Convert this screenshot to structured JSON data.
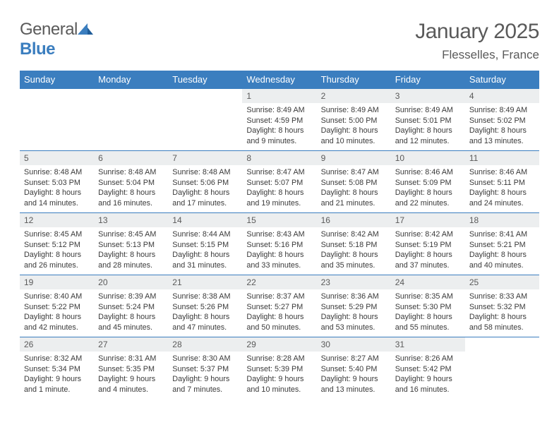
{
  "brand": {
    "name_a": "General",
    "name_b": "Blue"
  },
  "header": {
    "month_title": "January 2025",
    "location": "Flesselles, France"
  },
  "style": {
    "header_bg": "#3b7ebf",
    "header_fg": "#ffffff",
    "daynum_bg": "#eceeef",
    "text_color": "#5a5a5a",
    "body_color": "#3a3a3a",
    "row_border": "#3b7ebf",
    "page_bg": "#ffffff",
    "th_fontsize": 13,
    "daynum_fontsize": 12,
    "data_fontsize": 10.8,
    "title_fontsize": 30,
    "location_fontsize": 17
  },
  "weekdays": [
    "Sunday",
    "Monday",
    "Tuesday",
    "Wednesday",
    "Thursday",
    "Friday",
    "Saturday"
  ],
  "weeks": [
    [
      null,
      null,
      null,
      {
        "n": "1",
        "sr": "Sunrise: 8:49 AM",
        "ss": "Sunset: 4:59 PM",
        "dl1": "Daylight: 8 hours",
        "dl2": "and 9 minutes."
      },
      {
        "n": "2",
        "sr": "Sunrise: 8:49 AM",
        "ss": "Sunset: 5:00 PM",
        "dl1": "Daylight: 8 hours",
        "dl2": "and 10 minutes."
      },
      {
        "n": "3",
        "sr": "Sunrise: 8:49 AM",
        "ss": "Sunset: 5:01 PM",
        "dl1": "Daylight: 8 hours",
        "dl2": "and 12 minutes."
      },
      {
        "n": "4",
        "sr": "Sunrise: 8:49 AM",
        "ss": "Sunset: 5:02 PM",
        "dl1": "Daylight: 8 hours",
        "dl2": "and 13 minutes."
      }
    ],
    [
      {
        "n": "5",
        "sr": "Sunrise: 8:48 AM",
        "ss": "Sunset: 5:03 PM",
        "dl1": "Daylight: 8 hours",
        "dl2": "and 14 minutes."
      },
      {
        "n": "6",
        "sr": "Sunrise: 8:48 AM",
        "ss": "Sunset: 5:04 PM",
        "dl1": "Daylight: 8 hours",
        "dl2": "and 16 minutes."
      },
      {
        "n": "7",
        "sr": "Sunrise: 8:48 AM",
        "ss": "Sunset: 5:06 PM",
        "dl1": "Daylight: 8 hours",
        "dl2": "and 17 minutes."
      },
      {
        "n": "8",
        "sr": "Sunrise: 8:47 AM",
        "ss": "Sunset: 5:07 PM",
        "dl1": "Daylight: 8 hours",
        "dl2": "and 19 minutes."
      },
      {
        "n": "9",
        "sr": "Sunrise: 8:47 AM",
        "ss": "Sunset: 5:08 PM",
        "dl1": "Daylight: 8 hours",
        "dl2": "and 21 minutes."
      },
      {
        "n": "10",
        "sr": "Sunrise: 8:46 AM",
        "ss": "Sunset: 5:09 PM",
        "dl1": "Daylight: 8 hours",
        "dl2": "and 22 minutes."
      },
      {
        "n": "11",
        "sr": "Sunrise: 8:46 AM",
        "ss": "Sunset: 5:11 PM",
        "dl1": "Daylight: 8 hours",
        "dl2": "and 24 minutes."
      }
    ],
    [
      {
        "n": "12",
        "sr": "Sunrise: 8:45 AM",
        "ss": "Sunset: 5:12 PM",
        "dl1": "Daylight: 8 hours",
        "dl2": "and 26 minutes."
      },
      {
        "n": "13",
        "sr": "Sunrise: 8:45 AM",
        "ss": "Sunset: 5:13 PM",
        "dl1": "Daylight: 8 hours",
        "dl2": "and 28 minutes."
      },
      {
        "n": "14",
        "sr": "Sunrise: 8:44 AM",
        "ss": "Sunset: 5:15 PM",
        "dl1": "Daylight: 8 hours",
        "dl2": "and 31 minutes."
      },
      {
        "n": "15",
        "sr": "Sunrise: 8:43 AM",
        "ss": "Sunset: 5:16 PM",
        "dl1": "Daylight: 8 hours",
        "dl2": "and 33 minutes."
      },
      {
        "n": "16",
        "sr": "Sunrise: 8:42 AM",
        "ss": "Sunset: 5:18 PM",
        "dl1": "Daylight: 8 hours",
        "dl2": "and 35 minutes."
      },
      {
        "n": "17",
        "sr": "Sunrise: 8:42 AM",
        "ss": "Sunset: 5:19 PM",
        "dl1": "Daylight: 8 hours",
        "dl2": "and 37 minutes."
      },
      {
        "n": "18",
        "sr": "Sunrise: 8:41 AM",
        "ss": "Sunset: 5:21 PM",
        "dl1": "Daylight: 8 hours",
        "dl2": "and 40 minutes."
      }
    ],
    [
      {
        "n": "19",
        "sr": "Sunrise: 8:40 AM",
        "ss": "Sunset: 5:22 PM",
        "dl1": "Daylight: 8 hours",
        "dl2": "and 42 minutes."
      },
      {
        "n": "20",
        "sr": "Sunrise: 8:39 AM",
        "ss": "Sunset: 5:24 PM",
        "dl1": "Daylight: 8 hours",
        "dl2": "and 45 minutes."
      },
      {
        "n": "21",
        "sr": "Sunrise: 8:38 AM",
        "ss": "Sunset: 5:26 PM",
        "dl1": "Daylight: 8 hours",
        "dl2": "and 47 minutes."
      },
      {
        "n": "22",
        "sr": "Sunrise: 8:37 AM",
        "ss": "Sunset: 5:27 PM",
        "dl1": "Daylight: 8 hours",
        "dl2": "and 50 minutes."
      },
      {
        "n": "23",
        "sr": "Sunrise: 8:36 AM",
        "ss": "Sunset: 5:29 PM",
        "dl1": "Daylight: 8 hours",
        "dl2": "and 53 minutes."
      },
      {
        "n": "24",
        "sr": "Sunrise: 8:35 AM",
        "ss": "Sunset: 5:30 PM",
        "dl1": "Daylight: 8 hours",
        "dl2": "and 55 minutes."
      },
      {
        "n": "25",
        "sr": "Sunrise: 8:33 AM",
        "ss": "Sunset: 5:32 PM",
        "dl1": "Daylight: 8 hours",
        "dl2": "and 58 minutes."
      }
    ],
    [
      {
        "n": "26",
        "sr": "Sunrise: 8:32 AM",
        "ss": "Sunset: 5:34 PM",
        "dl1": "Daylight: 9 hours",
        "dl2": "and 1 minute."
      },
      {
        "n": "27",
        "sr": "Sunrise: 8:31 AM",
        "ss": "Sunset: 5:35 PM",
        "dl1": "Daylight: 9 hours",
        "dl2": "and 4 minutes."
      },
      {
        "n": "28",
        "sr": "Sunrise: 8:30 AM",
        "ss": "Sunset: 5:37 PM",
        "dl1": "Daylight: 9 hours",
        "dl2": "and 7 minutes."
      },
      {
        "n": "29",
        "sr": "Sunrise: 8:28 AM",
        "ss": "Sunset: 5:39 PM",
        "dl1": "Daylight: 9 hours",
        "dl2": "and 10 minutes."
      },
      {
        "n": "30",
        "sr": "Sunrise: 8:27 AM",
        "ss": "Sunset: 5:40 PM",
        "dl1": "Daylight: 9 hours",
        "dl2": "and 13 minutes."
      },
      {
        "n": "31",
        "sr": "Sunrise: 8:26 AM",
        "ss": "Sunset: 5:42 PM",
        "dl1": "Daylight: 9 hours",
        "dl2": "and 16 minutes."
      },
      null
    ]
  ]
}
